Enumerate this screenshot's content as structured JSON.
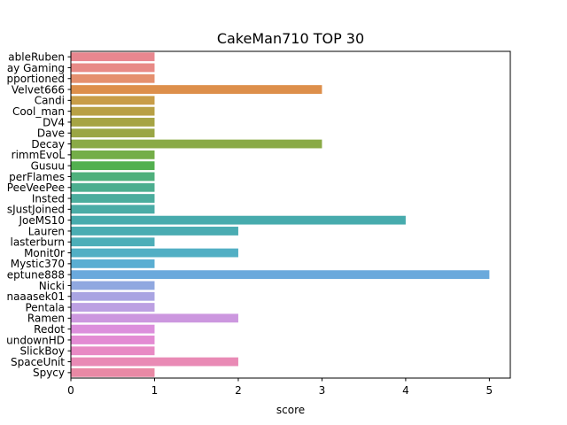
{
  "chart_data": {
    "type": "bar",
    "orientation": "horizontal",
    "title": "CakeMan710 TOP 30",
    "xlabel": "score",
    "ylabel": "",
    "xlim": [
      0,
      5.25
    ],
    "xticks": [
      "0",
      "1",
      "2",
      "3",
      "4",
      "5"
    ],
    "grid": false,
    "categories": [
      "ableRuben",
      "ay Gaming",
      "pportioned",
      "Velvet666",
      "Candi",
      "Cool_man",
      "DV4",
      "Dave",
      "Decay",
      "rimmEvoL",
      "Gusuu",
      "perFlames",
      "PeeVeePee",
      "Insted",
      "sJustJoined",
      "JoeMS10",
      "Lauren",
      "lasterburn",
      "Monit0r",
      "Mystic370",
      "eptune888",
      "Nicki",
      "naaasek01",
      "Pentala",
      "Ramen",
      "Redot",
      "undownHD",
      "SlickBoy",
      "SpaceUnit",
      "Spycy"
    ],
    "values": [
      1,
      1,
      1,
      3,
      1,
      1,
      1,
      1,
      3,
      1,
      1,
      1,
      1,
      1,
      1,
      4,
      2,
      1,
      2,
      1,
      5,
      1,
      1,
      1,
      2,
      1,
      1,
      1,
      2,
      1
    ],
    "colors": [
      "#e8878f",
      "#e88a86",
      "#e5906e",
      "#dd8f4b",
      "#c89d48",
      "#b8a045",
      "#a6a444",
      "#9aa645",
      "#8aaa46",
      "#74ae48",
      "#52b04f",
      "#4eb07c",
      "#4cae8f",
      "#4bad9d",
      "#4aaca6",
      "#47abad",
      "#4aacb2",
      "#4daeb8",
      "#52afc4",
      "#5aaed2",
      "#6aa9dc",
      "#90a8e0",
      "#a9a4e2",
      "#bca0e2",
      "#cc97df",
      "#dc8fdc",
      "#e38bd3",
      "#e88ac4",
      "#e98ab5",
      "#e989a5"
    ]
  }
}
